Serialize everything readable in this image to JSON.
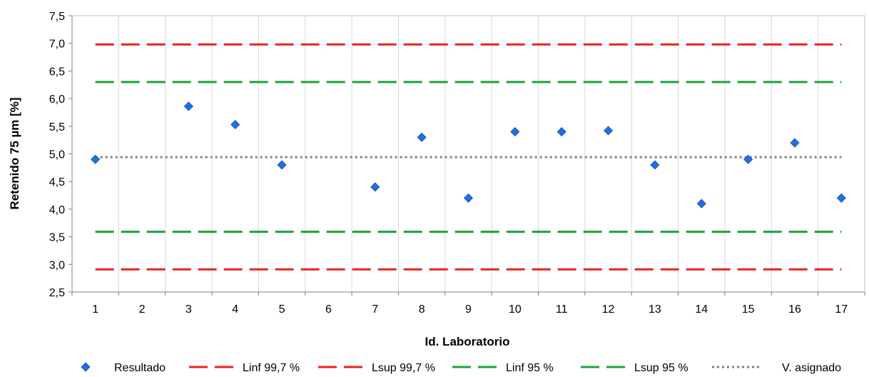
{
  "chart_data": {
    "type": "scatter",
    "title": "",
    "xlabel": "Id. Laboratorio",
    "ylabel": "Retenido 75 µm  [%]",
    "x": [
      1,
      2,
      3,
      4,
      5,
      6,
      7,
      8,
      9,
      10,
      11,
      12,
      13,
      14,
      15,
      16,
      17
    ],
    "xticks": [
      "1",
      "2",
      "3",
      "4",
      "5",
      "6",
      "7",
      "8",
      "9",
      "10",
      "11",
      "12",
      "13",
      "14",
      "15",
      "16",
      "17"
    ],
    "ylim": [
      2.5,
      7.5
    ],
    "yticks": [
      "2,5",
      "3,0",
      "3,5",
      "4,0",
      "4,5",
      "5,0",
      "5,5",
      "6,0",
      "6,5",
      "7,0",
      "7,5"
    ],
    "grid": "vertical",
    "legend_position": "bottom",
    "series": [
      {
        "name": "Resultado",
        "kind": "markers",
        "color": "#1f6fe0",
        "points": [
          [
            1,
            4.9
          ],
          [
            3,
            5.86
          ],
          [
            4,
            5.53
          ],
          [
            5,
            4.8
          ],
          [
            7,
            4.4
          ],
          [
            8,
            5.3
          ],
          [
            9,
            4.2
          ],
          [
            10,
            5.4
          ],
          [
            11,
            5.4
          ],
          [
            12,
            5.42
          ],
          [
            13,
            4.8
          ],
          [
            14,
            4.1
          ],
          [
            15,
            4.9
          ],
          [
            16,
            5.2
          ],
          [
            17,
            4.2
          ]
        ]
      },
      {
        "name": "Linf 99,7 %",
        "kind": "hline",
        "value": 2.91,
        "color": "#e8231f",
        "style": "dashed"
      },
      {
        "name": "Lsup 99,7 %",
        "kind": "hline",
        "value": 6.98,
        "color": "#e8231f",
        "style": "dashed"
      },
      {
        "name": "Linf 95 %",
        "kind": "hline",
        "value": 3.59,
        "color": "#1aa33a",
        "style": "dashed"
      },
      {
        "name": "Lsup 95 %",
        "kind": "hline",
        "value": 6.3,
        "color": "#1aa33a",
        "style": "dashed"
      },
      {
        "name": "V. asignado",
        "kind": "hline",
        "value": 4.94,
        "color": "#808080",
        "style": "dotted"
      }
    ]
  }
}
